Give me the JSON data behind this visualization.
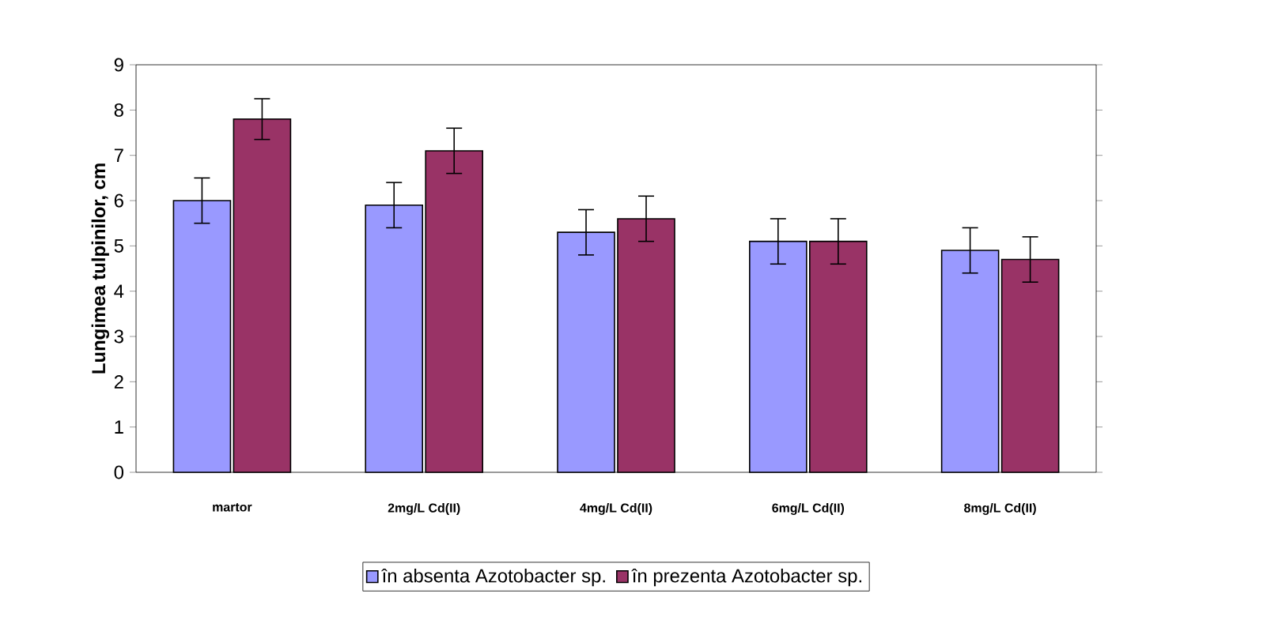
{
  "chart_data": {
    "type": "bar",
    "ylabel": "Lungimea tulpinilor, cm",
    "categories": [
      "martor",
      "2mg/L Cd(II)",
      "4mg/L Cd(II)",
      "6mg/L Cd(II)",
      "8mg/L Cd(II)"
    ],
    "series": [
      {
        "name": "în absenta Azotobacter sp.",
        "color": "#9999ff",
        "values": [
          6.0,
          5.9,
          5.3,
          5.1,
          4.9
        ],
        "errors": [
          0.5,
          0.5,
          0.5,
          0.5,
          0.5
        ]
      },
      {
        "name": "în prezenta Azotobacter sp.",
        "color": "#993366",
        "values": [
          7.8,
          7.1,
          5.6,
          5.1,
          4.7
        ],
        "errors": [
          0.45,
          0.5,
          0.5,
          0.5,
          0.5
        ]
      }
    ],
    "ylim": [
      0,
      9
    ],
    "yticks": [
      0,
      1,
      2,
      3,
      4,
      5,
      6,
      7,
      8,
      9
    ],
    "grid": false,
    "legend": "bottom"
  }
}
